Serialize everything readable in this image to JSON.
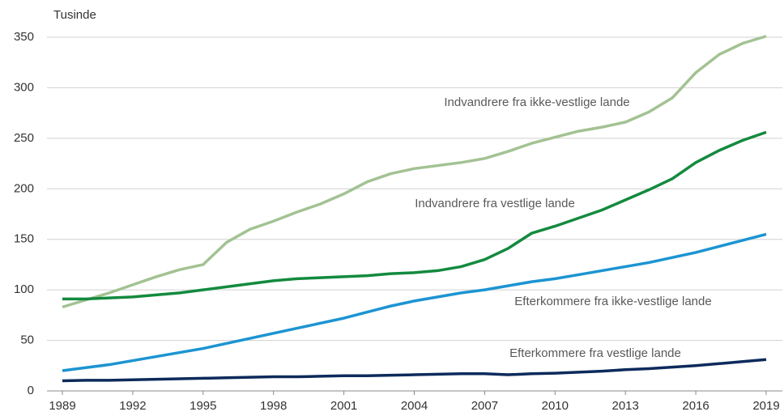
{
  "chart_data": {
    "type": "line",
    "y_axis_label": "Tusinde",
    "x": [
      1989,
      1990,
      1991,
      1992,
      1993,
      1994,
      1995,
      1996,
      1997,
      1998,
      1999,
      2000,
      2001,
      2002,
      2003,
      2004,
      2005,
      2006,
      2007,
      2008,
      2009,
      2010,
      2011,
      2012,
      2013,
      2014,
      2015,
      2016,
      2017,
      2018,
      2019
    ],
    "series": [
      {
        "name": "Indvandrere fra ikke-vestlige lande",
        "color": "#a3c293",
        "values": [
          83,
          90,
          97,
          105,
          113,
          120,
          125,
          147,
          160,
          168,
          177,
          185,
          195,
          207,
          215,
          220,
          223,
          226,
          230,
          237,
          245,
          251,
          257,
          261,
          266,
          276,
          290,
          315,
          333,
          344,
          351
        ]
      },
      {
        "name": "Indvandrere fra vestlige lande",
        "color": "#138a3e",
        "values": [
          91,
          91,
          92,
          93,
          95,
          97,
          100,
          103,
          106,
          109,
          111,
          112,
          113,
          114,
          116,
          117,
          119,
          123,
          130,
          141,
          156,
          163,
          171,
          179,
          189,
          199,
          210,
          226,
          238,
          248,
          256
        ]
      },
      {
        "name": "Efterkommere fra ikke-vestlige lande",
        "color": "#1c94d2",
        "values": [
          20,
          23,
          26,
          30,
          34,
          38,
          42,
          47,
          52,
          57,
          62,
          67,
          72,
          78,
          84,
          89,
          93,
          97,
          100,
          104,
          108,
          111,
          115,
          119,
          123,
          127,
          132,
          137,
          143,
          149,
          155
        ]
      },
      {
        "name": "Efterkommere fra vestlige lande",
        "color": "#0d2a5c",
        "values": [
          10,
          10.5,
          10.5,
          11,
          11.5,
          12,
          12.5,
          13,
          13.5,
          14,
          14,
          14.5,
          15,
          15,
          15.5,
          16,
          16.5,
          17,
          17,
          16,
          17,
          17.5,
          18.5,
          19.5,
          21,
          22,
          23.5,
          25,
          27,
          29,
          31
        ]
      }
    ],
    "xlim": [
      1989,
      2019
    ],
    "xticks": [
      1989,
      1992,
      1995,
      1998,
      2001,
      2004,
      2007,
      2010,
      2013,
      2016,
      2019
    ],
    "ylim": [
      0,
      350
    ],
    "yticks": [
      0,
      50,
      100,
      150,
      200,
      250,
      300,
      350
    ],
    "grid": true
  }
}
